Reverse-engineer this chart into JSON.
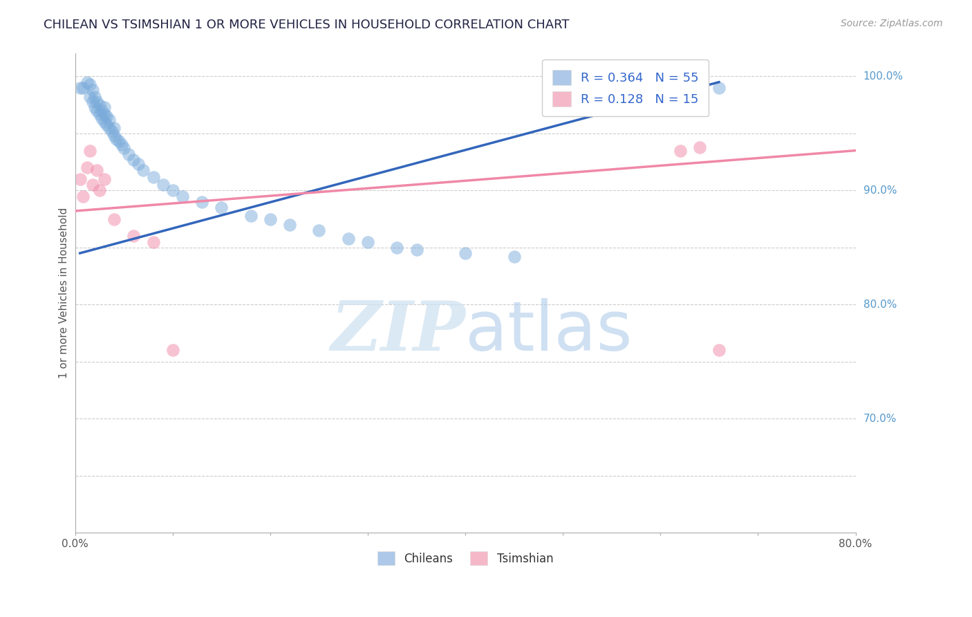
{
  "title": "CHILEAN VS TSIMSHIAN 1 OR MORE VEHICLES IN HOUSEHOLD CORRELATION CHART",
  "source": "Source: ZipAtlas.com",
  "ylabel": "1 or more Vehicles in Household",
  "xlim": [
    0.0,
    0.8
  ],
  "ylim": [
    0.6,
    1.02
  ],
  "xticks": [
    0.0,
    0.1,
    0.2,
    0.3,
    0.4,
    0.5,
    0.6,
    0.7,
    0.8
  ],
  "xticklabels": [
    "0.0%",
    "",
    "",
    "",
    "",
    "",
    "",
    "",
    "80.0%"
  ],
  "ytick_positions": [
    1.0,
    0.9,
    0.8,
    0.7
  ],
  "ytick_labels": [
    "100.0%",
    "90.0%",
    "80.0%",
    "70.0%"
  ],
  "grid_y_positions": [
    1.0,
    0.95,
    0.9,
    0.85,
    0.8,
    0.75,
    0.7,
    0.65
  ],
  "legend_entries": [
    {
      "label": "R = 0.364   N = 55",
      "color": "#adc8e8"
    },
    {
      "label": "R = 0.128   N = 15",
      "color": "#f5b8c8"
    }
  ],
  "footer_labels": [
    "Chileans",
    "Tsimshian"
  ],
  "footer_colors": [
    "#adc8e8",
    "#f5b8c8"
  ],
  "blue_scatter_x": [
    0.005,
    0.008,
    0.012,
    0.015,
    0.015,
    0.018,
    0.018,
    0.02,
    0.02,
    0.022,
    0.022,
    0.025,
    0.025,
    0.027,
    0.027,
    0.03,
    0.03,
    0.03,
    0.032,
    0.032,
    0.035,
    0.035,
    0.038,
    0.04,
    0.04,
    0.042,
    0.045,
    0.048,
    0.05,
    0.055,
    0.06,
    0.065,
    0.07,
    0.08,
    0.09,
    0.1,
    0.11,
    0.13,
    0.15,
    0.18,
    0.2,
    0.22,
    0.25,
    0.28,
    0.3,
    0.33,
    0.35,
    0.4,
    0.45,
    0.5,
    0.55,
    0.6,
    0.62,
    0.64,
    0.66
  ],
  "blue_scatter_y": [
    0.99,
    0.99,
    0.995,
    0.982,
    0.993,
    0.978,
    0.988,
    0.973,
    0.982,
    0.97,
    0.978,
    0.967,
    0.975,
    0.963,
    0.97,
    0.96,
    0.967,
    0.973,
    0.958,
    0.965,
    0.955,
    0.962,
    0.952,
    0.948,
    0.955,
    0.945,
    0.943,
    0.94,
    0.937,
    0.932,
    0.927,
    0.923,
    0.918,
    0.912,
    0.905,
    0.9,
    0.895,
    0.89,
    0.885,
    0.878,
    0.875,
    0.87,
    0.865,
    0.858,
    0.855,
    0.85,
    0.848,
    0.845,
    0.842,
    0.99,
    0.988,
    0.993,
    0.992,
    0.991,
    0.99
  ],
  "pink_scatter_x": [
    0.005,
    0.008,
    0.012,
    0.015,
    0.018,
    0.022,
    0.025,
    0.03,
    0.04,
    0.06,
    0.08,
    0.1,
    0.62,
    0.64,
    0.66
  ],
  "pink_scatter_y": [
    0.91,
    0.895,
    0.92,
    0.935,
    0.905,
    0.918,
    0.9,
    0.91,
    0.875,
    0.86,
    0.855,
    0.76,
    0.935,
    0.938,
    0.76
  ],
  "blue_line_x": [
    0.005,
    0.66
  ],
  "blue_line_y": [
    0.845,
    0.995
  ],
  "pink_line_x": [
    0.0,
    0.8
  ],
  "pink_line_y": [
    0.882,
    0.935
  ],
  "watermark_text": "ZIPatlas",
  "watermark_color": "#d8e8f5",
  "grid_color": "#cccccc",
  "blue_color": "#7aabdb",
  "pink_color": "#f088a8",
  "title_color": "#222244",
  "ylabel_color": "#555555",
  "yticklabel_color": "#5599cc",
  "source_color": "#999999",
  "background_color": "#ffffff"
}
